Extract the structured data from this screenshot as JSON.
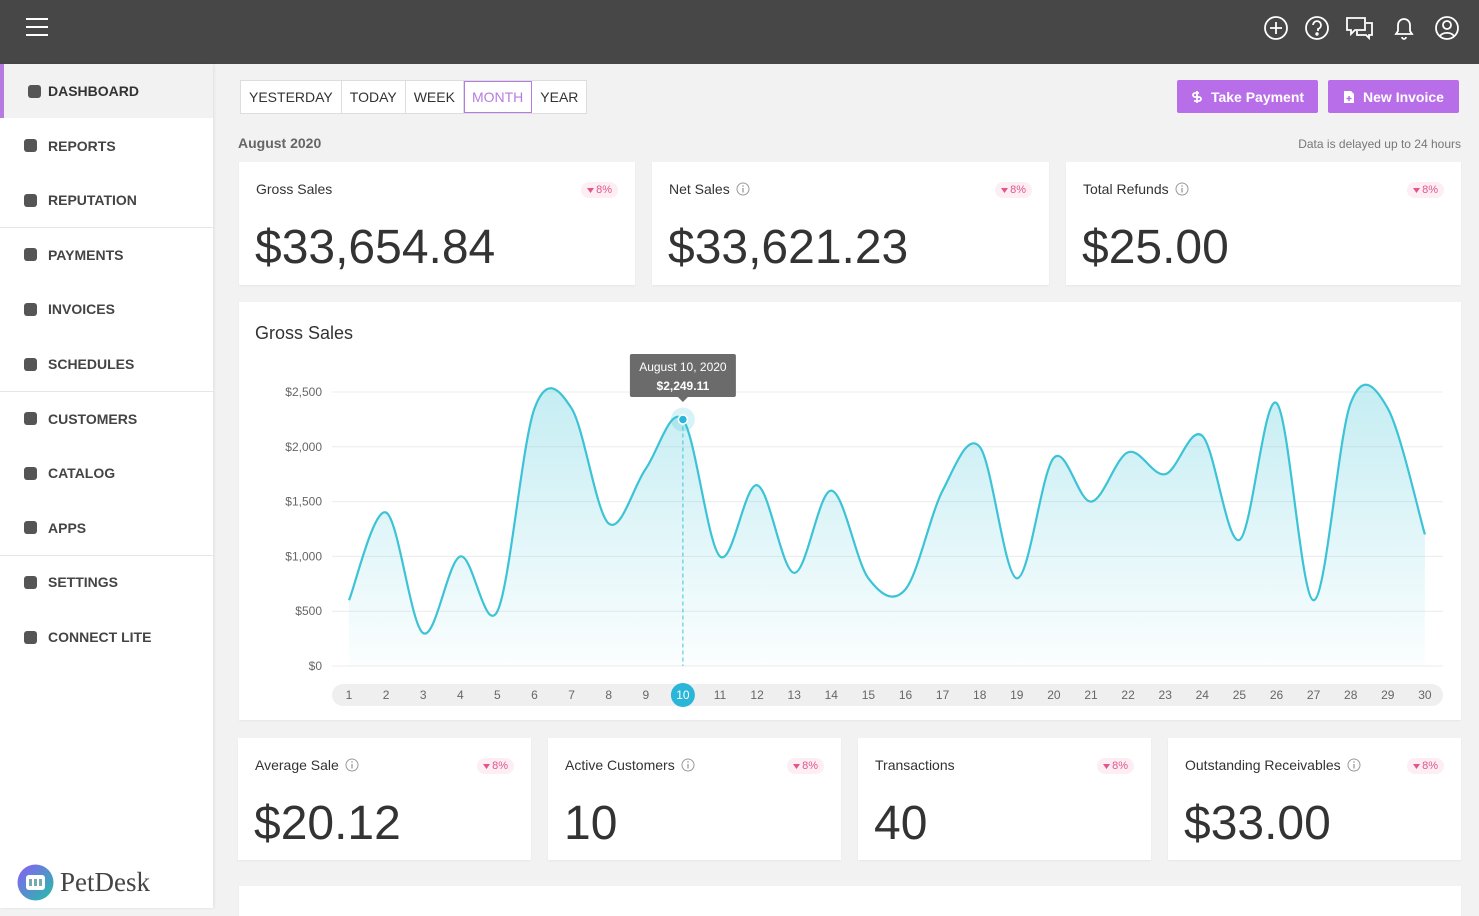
{
  "sidebar": {
    "items": [
      "DASHBOARD",
      "REPORTS",
      "REPUTATION",
      "PAYMENTS",
      "INVOICES",
      "SCHEDULES",
      "CUSTOMERS",
      "CATALOG",
      "APPS",
      "SETTINGS",
      "CONNECT LITE"
    ],
    "active": "DASHBOARD",
    "brand": "PetDesk"
  },
  "range_tabs": {
    "items": [
      "YESTERDAY",
      "TODAY",
      "WEEK",
      "MONTH",
      "YEAR"
    ],
    "active": "MONTH"
  },
  "actions": [
    "Take Payment",
    "New Invoice"
  ],
  "period": "August 2020",
  "delay_note": "Data is delayed up to 24 hours",
  "stats_top": [
    {
      "label": "Gross Sales",
      "change": "8%",
      "value": "$33,654.84"
    },
    {
      "label": "Net Sales",
      "change": "8%",
      "value": "$33,621.23"
    },
    {
      "label": "Total Refunds",
      "change": "8%",
      "value": "$25.00"
    }
  ],
  "chart_data": {
    "type": "area",
    "title": "Gross Sales",
    "categories": [
      "1",
      "2",
      "3",
      "4",
      "5",
      "6",
      "7",
      "8",
      "9",
      "10",
      "11",
      "12",
      "13",
      "14",
      "15",
      "16",
      "17",
      "18",
      "19",
      "20",
      "21",
      "22",
      "23",
      "24",
      "25",
      "26",
      "27",
      "28",
      "29",
      "30"
    ],
    "series": [
      {
        "name": "Gross Sales",
        "color": "#3cc3d6",
        "values": [
          600,
          1400,
          300,
          1000,
          500,
          2350,
          2350,
          1300,
          1800,
          2249.11,
          1000,
          1650,
          850,
          1600,
          800,
          700,
          1600,
          2000,
          800,
          1900,
          1500,
          1950,
          1750,
          2100,
          1150,
          2400,
          600,
          2400,
          2350,
          1200
        ]
      }
    ],
    "ylim": [
      0,
      2600
    ],
    "yticks": [
      {
        "value": 0,
        "label": "$0"
      },
      {
        "value": 500,
        "label": "$500"
      },
      {
        "value": 1000,
        "label": "$1,000"
      },
      {
        "value": 1500,
        "label": "$1,500"
      },
      {
        "value": 2000,
        "label": "$2,000"
      },
      {
        "value": 2500,
        "label": "$2,500"
      }
    ],
    "highlight": "10",
    "tooltip": {
      "date": "August 10, 2020",
      "value": "$2,249.11"
    }
  },
  "stats_bottom": [
    {
      "label": "Average Sale",
      "change": "8%",
      "value": "$20.12",
      "info": true
    },
    {
      "label": "Active Customers",
      "change": "8%",
      "value": "10",
      "info": true
    },
    {
      "label": "Transactions",
      "change": "8%",
      "value": "40",
      "info": false
    },
    {
      "label": "Outstanding Receivables",
      "change": "8%",
      "value": "$33.00",
      "info": true
    }
  ]
}
